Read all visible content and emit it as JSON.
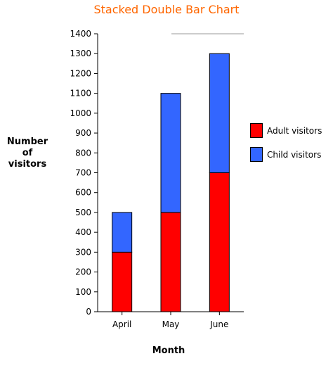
{
  "chart_data": {
    "type": "bar",
    "stacked": true,
    "title": "Stacked Double Bar Chart",
    "xlabel": "Month",
    "ylabel_lines": [
      "Number",
      "of",
      "visitors"
    ],
    "categories": [
      "April",
      "May",
      "June"
    ],
    "series": [
      {
        "name": "Adult visitors",
        "values": [
          300,
          500,
          700
        ],
        "color": "#ff0000"
      },
      {
        "name": "Child visitors",
        "values": [
          200,
          600,
          600
        ],
        "color": "#3366ff"
      }
    ],
    "ylim": [
      0,
      1400
    ],
    "yticks": [
      0,
      100,
      200,
      300,
      400,
      500,
      600,
      700,
      800,
      900,
      1000,
      1100,
      1200,
      1300,
      1400
    ],
    "grid": false,
    "legend_position": "right"
  }
}
